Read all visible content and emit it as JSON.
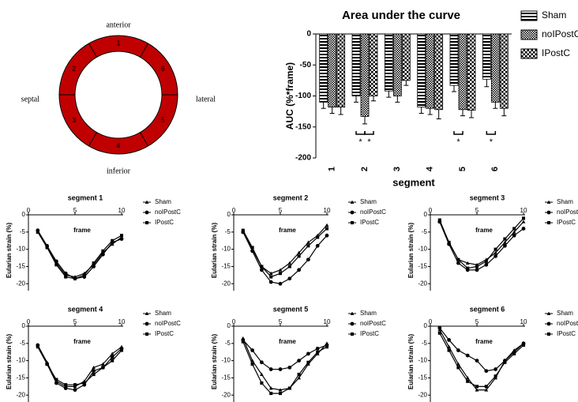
{
  "diagram": {
    "orientation": [
      "anterior",
      "lateral",
      "inferior",
      "septal"
    ],
    "segments": [
      "1",
      "6",
      "5",
      "4",
      "3",
      "2"
    ],
    "color": "#c00000"
  },
  "chart_data": [
    {
      "type": "bar",
      "title": "Area under the curve",
      "xlabel": "segment",
      "ylabel": "AUC (%*frame)",
      "categories": [
        "1",
        "2",
        "3",
        "4",
        "5",
        "6"
      ],
      "series": [
        {
          "name": "Sham",
          "color": "#000000",
          "pattern": "stripes",
          "values": [
            -110,
            -100,
            -92,
            -118,
            -83,
            -73
          ],
          "errors": [
            10,
            10,
            10,
            10,
            10,
            12
          ]
        },
        {
          "name": "noIPostC",
          "color": "#000000",
          "pattern": "dense-check",
          "values": [
            -118,
            -133,
            -100,
            -120,
            -122,
            -110
          ],
          "errors": [
            10,
            12,
            10,
            10,
            10,
            10
          ]
        },
        {
          "name": "IPostC",
          "color": "#000000",
          "pattern": "check",
          "values": [
            -118,
            -100,
            -75,
            -122,
            -123,
            -120
          ],
          "errors": [
            12,
            8,
            8,
            15,
            12,
            12
          ]
        }
      ],
      "ylim": [
        -200,
        0
      ],
      "yticks": [
        -200,
        -150,
        -100,
        -50,
        0
      ],
      "annotations": [
        {
          "x": "2",
          "between": [
            "Sham",
            "noIPostC"
          ],
          "text": "*"
        },
        {
          "x": "2",
          "between": [
            "noIPostC",
            "IPostC"
          ],
          "text": "*"
        },
        {
          "x": "5",
          "between": [
            "Sham",
            "noIPostC"
          ],
          "text": "*"
        },
        {
          "x": "6",
          "between": [
            "Sham",
            "noIPostC"
          ],
          "text": "*"
        }
      ]
    },
    {
      "type": "line",
      "title": "segment 1",
      "xlabel": "frame",
      "ylabel": "Eularian strain (%)",
      "x": [
        1,
        2,
        3,
        4,
        5,
        6,
        7,
        8,
        9,
        10
      ],
      "series": [
        {
          "name": "Sham",
          "color": "#000000",
          "marker": "triangle",
          "values": [
            -5,
            -9,
            -14,
            -17.5,
            -18,
            -17,
            -14.5,
            -11,
            -8.5,
            -6.5
          ]
        },
        {
          "name": "noIPostC",
          "color": "#000000",
          "marker": "circle",
          "values": [
            -4.5,
            -9,
            -13.5,
            -17,
            -18.5,
            -18,
            -15,
            -11.5,
            -8,
            -7
          ]
        },
        {
          "name": "IPostC",
          "color": "#000000",
          "marker": "square",
          "values": [
            -5,
            -9.5,
            -14.5,
            -18,
            -18.5,
            -17.5,
            -14,
            -10.5,
            -7.5,
            -6
          ]
        }
      ],
      "xlim": [
        0,
        10
      ],
      "xticks": [
        0,
        5,
        10
      ],
      "ylim": [
        -22,
        0
      ],
      "yticks": [
        0,
        -5,
        -10,
        -15,
        -20
      ]
    },
    {
      "type": "line",
      "title": "segment 2",
      "xlabel": "frame",
      "ylabel": "Eularian strain (%)",
      "x": [
        1,
        2,
        3,
        4,
        5,
        6,
        7,
        8,
        9,
        10
      ],
      "series": [
        {
          "name": "Sham",
          "color": "#000000",
          "marker": "triangle",
          "values": [
            -5,
            -10,
            -15,
            -17,
            -16,
            -14,
            -11,
            -8,
            -6,
            -3
          ]
        },
        {
          "name": "noIPostC",
          "color": "#000000",
          "marker": "circle",
          "values": [
            -5,
            -10.5,
            -16,
            -19.5,
            -20,
            -18.5,
            -16,
            -13,
            -9,
            -6
          ]
        },
        {
          "name": "IPostC",
          "color": "#000000",
          "marker": "square",
          "values": [
            -4.5,
            -9.5,
            -15,
            -18,
            -17,
            -15,
            -12,
            -9,
            -6.5,
            -4
          ]
        }
      ],
      "xlim": [
        0,
        10
      ],
      "xticks": [
        0,
        5,
        10
      ],
      "ylim": [
        -22,
        0
      ],
      "yticks": [
        0,
        -5,
        -10,
        -15,
        -20
      ]
    },
    {
      "type": "line",
      "title": "segment 3",
      "xlabel": "frame",
      "ylabel": "Eularian strain (%)",
      "x": [
        1,
        2,
        3,
        4,
        5,
        6,
        7,
        8,
        9,
        10
      ],
      "series": [
        {
          "name": "Sham",
          "color": "#000000",
          "marker": "triangle",
          "values": [
            -2,
            -8,
            -13,
            -14,
            -14.5,
            -13,
            -11,
            -8,
            -5,
            -2
          ]
        },
        {
          "name": "noIPostC",
          "color": "#000000",
          "marker": "circle",
          "values": [
            -2,
            -8.5,
            -14,
            -16,
            -16,
            -14.5,
            -12,
            -9,
            -6,
            -4
          ]
        },
        {
          "name": "IPostC",
          "color": "#000000",
          "marker": "square",
          "values": [
            -1.5,
            -8,
            -13,
            -15.5,
            -15,
            -13.5,
            -10,
            -7,
            -4,
            -1
          ]
        }
      ],
      "xlim": [
        0,
        10
      ],
      "xticks": [
        0,
        5,
        10
      ],
      "ylim": [
        -22,
        0
      ],
      "yticks": [
        0,
        -5,
        -10,
        -15,
        -20
      ]
    },
    {
      "type": "line",
      "title": "segment 4",
      "xlabel": "frame",
      "ylabel": "Eularian strain (%)",
      "x": [
        1,
        2,
        3,
        4,
        5,
        6,
        7,
        8,
        9,
        10
      ],
      "series": [
        {
          "name": "Sham",
          "color": "#000000",
          "marker": "triangle",
          "values": [
            -5.5,
            -10.5,
            -16,
            -17.5,
            -17.5,
            -16,
            -12,
            -11,
            -8,
            -6
          ]
        },
        {
          "name": "noIPostC",
          "color": "#000000",
          "marker": "circle",
          "values": [
            -5.5,
            -11,
            -16.5,
            -18,
            -18.5,
            -17,
            -13,
            -12,
            -9,
            -6.5
          ]
        },
        {
          "name": "IPostC",
          "color": "#000000",
          "marker": "square",
          "values": [
            -6,
            -11,
            -15.5,
            -17,
            -17,
            -16.5,
            -14,
            -12,
            -10,
            -7
          ]
        }
      ],
      "xlim": [
        0,
        10
      ],
      "xticks": [
        0,
        5,
        10
      ],
      "ylim": [
        -22,
        0
      ],
      "yticks": [
        0,
        -5,
        -10,
        -15,
        -20
      ]
    },
    {
      "type": "line",
      "title": "segment 5",
      "xlabel": "frame",
      "ylabel": "Eularian strain (%)",
      "x": [
        1,
        2,
        3,
        4,
        5,
        6,
        7,
        8,
        9,
        10
      ],
      "series": [
        {
          "name": "Sham",
          "color": "#000000",
          "marker": "triangle",
          "values": [
            -3.5,
            -10,
            -14,
            -18,
            -18.5,
            -18,
            -15,
            -11,
            -8,
            -5
          ]
        },
        {
          "name": "noIPostC",
          "color": "#000000",
          "marker": "circle",
          "values": [
            -4,
            -7,
            -10.5,
            -12.5,
            -12.5,
            -12,
            -10,
            -8,
            -6.5,
            -5.5
          ]
        },
        {
          "name": "IPostC",
          "color": "#000000",
          "marker": "square",
          "values": [
            -4.5,
            -11,
            -16.5,
            -19.5,
            -19.5,
            -18,
            -14,
            -10.5,
            -7.5,
            -6
          ]
        }
      ],
      "xlim": [
        0,
        10
      ],
      "xticks": [
        0,
        5,
        10
      ],
      "ylim": [
        -22,
        0
      ],
      "yticks": [
        0,
        -5,
        -10,
        -15,
        -20
      ]
    },
    {
      "type": "line",
      "title": "segment 6",
      "xlabel": "frame",
      "ylabel": "Eularian strain (%)",
      "x": [
        1,
        2,
        3,
        4,
        5,
        6,
        7,
        8,
        9,
        10
      ],
      "series": [
        {
          "name": "Sham",
          "color": "#000000",
          "marker": "triangle",
          "values": [
            -1,
            -6,
            -11,
            -15,
            -18.5,
            -18.5,
            -15,
            -10,
            -7,
            -5
          ]
        },
        {
          "name": "noIPostC",
          "color": "#000000",
          "marker": "circle",
          "values": [
            -0.5,
            -4,
            -7,
            -8.5,
            -10,
            -13,
            -12.5,
            -10,
            -7.5,
            -5
          ]
        },
        {
          "name": "IPostC",
          "color": "#000000",
          "marker": "square",
          "values": [
            -2,
            -7,
            -12,
            -16,
            -17.5,
            -17.5,
            -14.5,
            -10.5,
            -8,
            -5.5
          ]
        }
      ],
      "xlim": [
        0,
        10
      ],
      "xticks": [
        0,
        5,
        10
      ],
      "ylim": [
        -22,
        0
      ],
      "yticks": [
        0,
        -5,
        -10,
        -15,
        -20
      ]
    }
  ]
}
